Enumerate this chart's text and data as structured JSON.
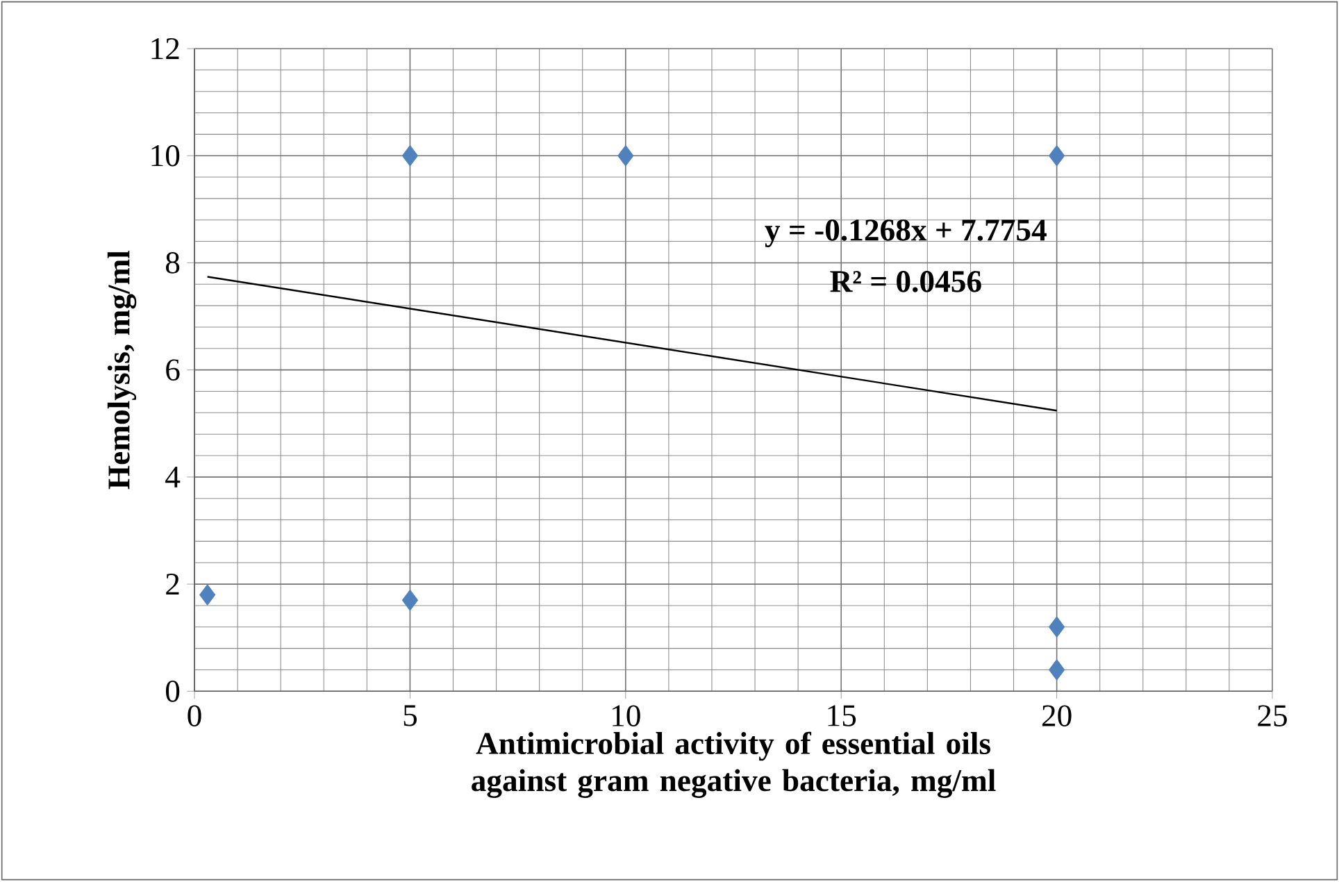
{
  "chart_data": {
    "type": "scatter",
    "xlabel": "Antimicrobial activity of essential oils against gram negative bacteria, mg/ml",
    "ylabel": "Hemolysis, mg/ml",
    "series": [
      {
        "color": "#4f81bd",
        "marker": "diamond",
        "x": [
          0.3,
          5,
          5,
          10,
          20,
          20,
          20
        ],
        "values": [
          1.8,
          10,
          1.7,
          10,
          10,
          1.2,
          0.4
        ]
      },
      {
        "type": "line",
        "color": "#000000",
        "marker": "none",
        "x": [
          0.3,
          20
        ],
        "values": [
          7.74,
          5.24
        ]
      }
    ],
    "annotations": [
      "y = -0.1268x + 7.7754",
      "R² = 0.0456"
    ],
    "xlim": [
      0,
      25
    ],
    "xticks": [
      0,
      5,
      10,
      15,
      20,
      25
    ],
    "ylim": [
      0,
      12
    ],
    "yticks": [
      0,
      2,
      4,
      6,
      8,
      10,
      12
    ],
    "grid": true
  }
}
